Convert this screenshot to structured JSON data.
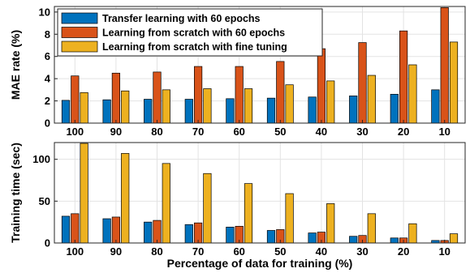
{
  "chart_data": [
    {
      "type": "bar",
      "categories": [
        "100",
        "90",
        "80",
        "70",
        "60",
        "50",
        "40",
        "30",
        "20",
        "10"
      ],
      "series": [
        {
          "name": "Transfer learning with 60 epochs",
          "color": "#0072BD",
          "values": [
            2.05,
            2.1,
            2.15,
            2.15,
            2.2,
            2.25,
            2.35,
            2.45,
            2.6,
            3.0
          ]
        },
        {
          "name": "Learning from scratch with 60 epochs",
          "color": "#D95319",
          "values": [
            4.25,
            4.5,
            4.6,
            5.1,
            5.1,
            5.55,
            6.7,
            7.25,
            8.3,
            10.4
          ]
        },
        {
          "name": "Learning from scratch with fine tuning",
          "color": "#EDB120",
          "values": [
            2.75,
            2.9,
            3.0,
            3.1,
            3.1,
            3.45,
            3.8,
            4.3,
            5.25,
            7.3
          ]
        }
      ],
      "xlabel": "",
      "ylabel": "MAE rate (%)",
      "ylim": [
        0,
        10.5
      ],
      "yticks": [
        "0",
        "2",
        "4",
        "6",
        "8",
        "10"
      ],
      "grid": true,
      "legend": "top-left"
    },
    {
      "type": "bar",
      "categories": [
        "100",
        "90",
        "80",
        "70",
        "60",
        "50",
        "40",
        "30",
        "20",
        "10"
      ],
      "series": [
        {
          "name": "Transfer learning with 60 epochs",
          "color": "#0072BD",
          "values": [
            32,
            29,
            25,
            22,
            19,
            15,
            12,
            8,
            6,
            3
          ]
        },
        {
          "name": "Learning from scratch with 60 epochs",
          "color": "#D95319",
          "values": [
            35,
            31,
            27,
            24,
            20,
            16,
            13,
            9,
            6,
            3
          ]
        },
        {
          "name": "Learning from scratch with fine tuning",
          "color": "#EDB120",
          "values": [
            119,
            107,
            95,
            83,
            71,
            59,
            47,
            35,
            23,
            11
          ]
        }
      ],
      "xlabel": "Percentage of data for training (%)",
      "ylabel": "Training time (sec)",
      "ylim": [
        0,
        120
      ],
      "yticks": [
        "0",
        "50",
        "100"
      ],
      "grid": true
    }
  ]
}
